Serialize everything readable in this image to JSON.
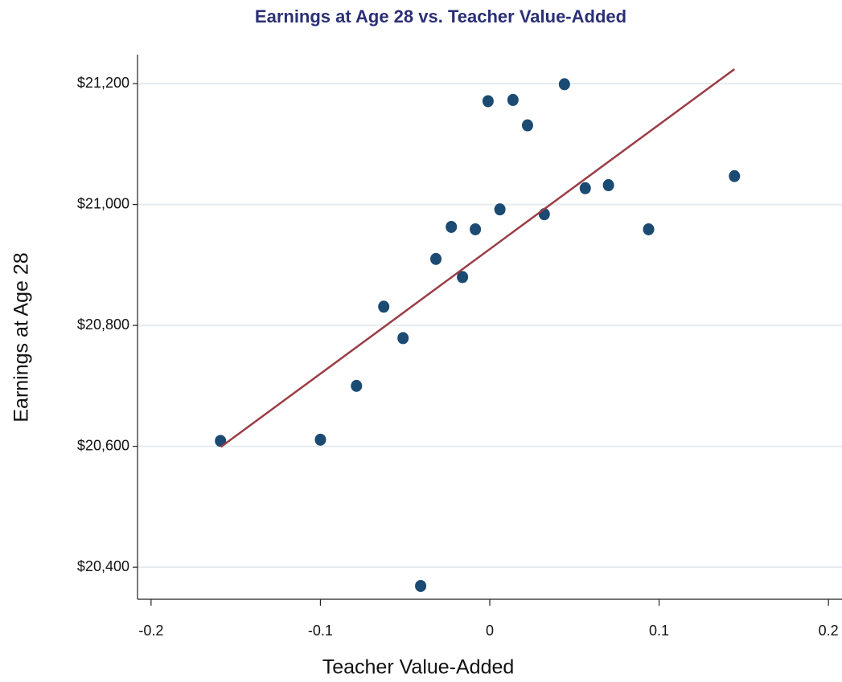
{
  "chart_data": {
    "type": "scatter",
    "title": "Earnings at Age 28 vs. Teacher Value-Added",
    "x_label": "Teacher Value-Added",
    "y_label": "Earnings at Age 28",
    "x": [
      -0.159,
      -0.1,
      -0.0787,
      -0.0626,
      -0.0512,
      -0.0408,
      -0.0318,
      -0.0227,
      -0.0161,
      -0.0085,
      -0.001,
      0.006,
      0.0137,
      0.0223,
      0.0322,
      0.0441,
      0.0564,
      0.0701,
      0.0938,
      0.1445
    ],
    "values": [
      20609,
      20611,
      20700,
      20831,
      20779,
      20369,
      20910,
      20963,
      20880,
      20959,
      21171,
      20992,
      21173,
      21131,
      20984,
      21199,
      21027,
      21032,
      20959,
      21047
    ],
    "color": "#1b4a72",
    "fit_line": {
      "x": [
        -0.1588,
        0.1445
      ],
      "y": [
        20599,
        21224
      ],
      "color": "#9b3d45"
    },
    "xlim": [
      -0.208,
      0.208
    ],
    "ylim": [
      20347,
      21248
    ],
    "xticks": [
      -0.2,
      -0.1,
      0,
      0.1,
      0.2
    ],
    "yticks": [
      {
        "value": 20400,
        "label": "$20,400"
      },
      {
        "value": 20600,
        "label": "$20,600"
      },
      {
        "value": 20800,
        "label": "$20,800"
      },
      {
        "value": 21000,
        "label": "$21,000"
      },
      {
        "value": 21200,
        "label": "$21,200"
      }
    ],
    "grid": true
  }
}
